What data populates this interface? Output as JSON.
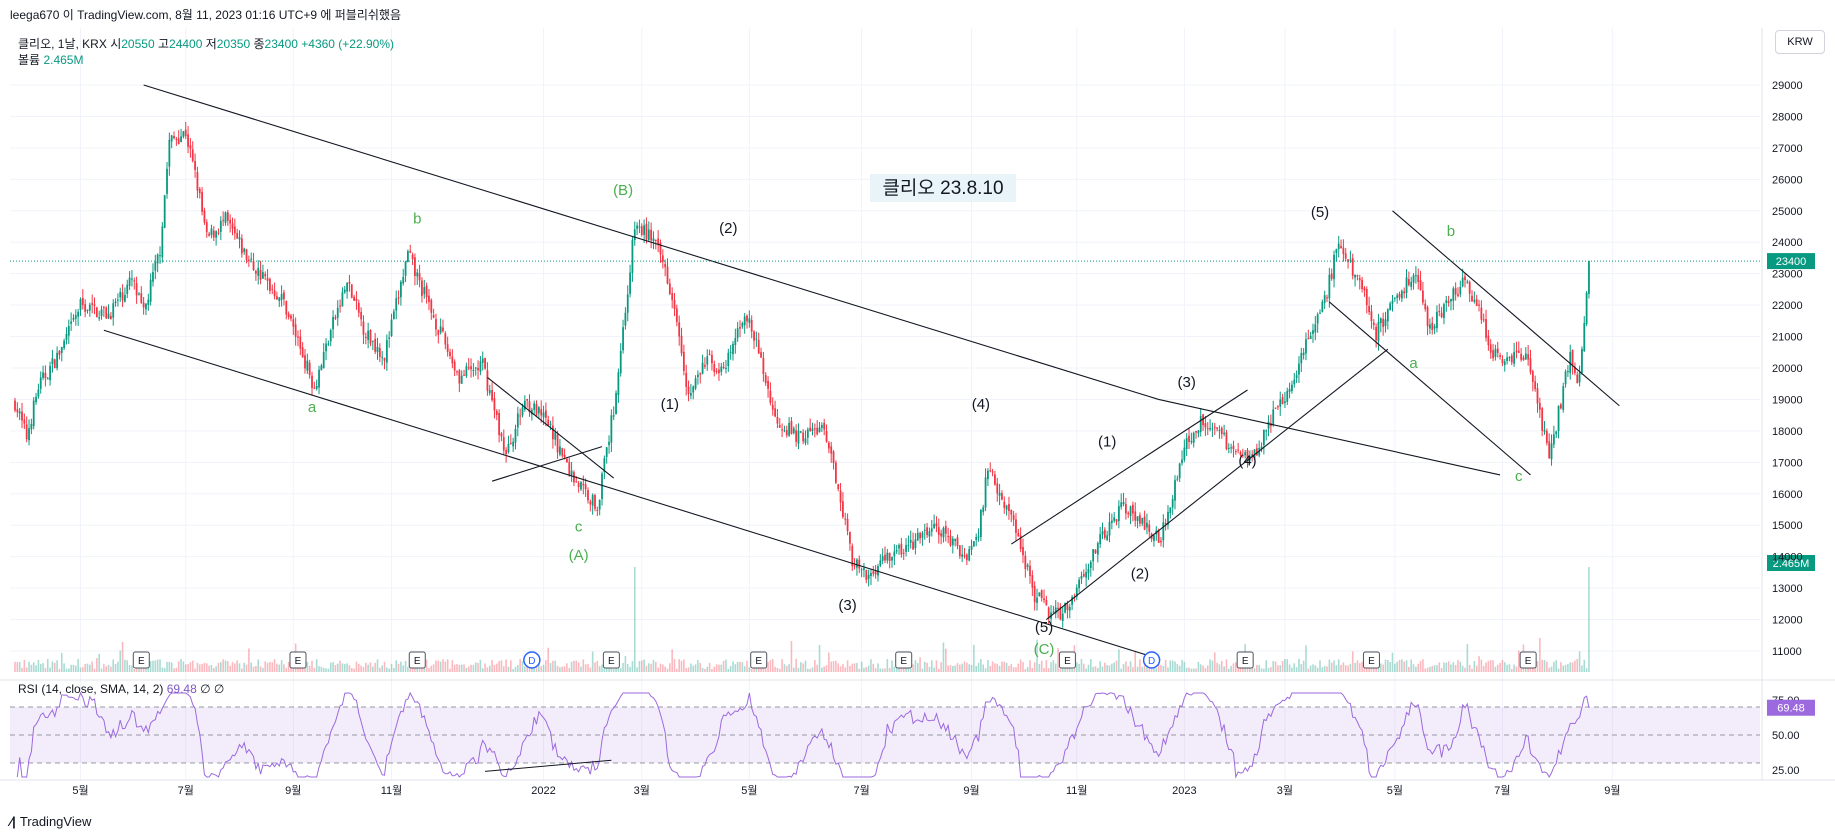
{
  "header": {
    "published_note": "leega670 이 TradingView.com, 8월 11, 2023 01:16 UTC+9 에 퍼블리쉬했음",
    "symbol_line": "클리오, 1날, KRX",
    "open_label": "시",
    "open": "20550",
    "high_label": "고",
    "high": "24400",
    "low_label": "저",
    "low": "20350",
    "close_label": "종",
    "close": "23400",
    "change": "+4360 (+22.90%)",
    "volume_label": "볼륨",
    "volume": "2.465M",
    "currency": "KRW"
  },
  "rsi_header": {
    "label": "RSI (14, close, SMA, 14, 2)",
    "value": "69.48",
    "extra": "∅ ∅"
  },
  "footer": {
    "brand": "TradingView"
  },
  "colors": {
    "up": "#089981",
    "down": "#f23645",
    "rsi": "#9c6ade",
    "wave_green": "#4caf50",
    "price_line": "#089981"
  },
  "chart_data": {
    "type": "candlestick",
    "title": "클리오 23.8.10",
    "y_ticks": [
      11000,
      12000,
      13000,
      14000,
      15000,
      16000,
      17000,
      18000,
      19000,
      20000,
      21000,
      22000,
      23000,
      24000,
      25000,
      26000,
      27000,
      28000,
      29000
    ],
    "ylim": [
      10300,
      29700
    ],
    "x_tick_labels": [
      "5월",
      "7월",
      "9월",
      "11월",
      "2022",
      "3월",
      "5월",
      "7월",
      "9월",
      "11월",
      "2023",
      "3월",
      "5월",
      "7월",
      "9월"
    ],
    "x_tick_bars": [
      28,
      73,
      119,
      161,
      226,
      268,
      314,
      362,
      409,
      454,
      500,
      543,
      590,
      636,
      683
    ],
    "total_bars": 745,
    "last_price": "23400",
    "last_volume": "2.465M",
    "price_path_knots": [
      [
        0,
        18900
      ],
      [
        5,
        17800
      ],
      [
        10,
        19400
      ],
      [
        20,
        20600
      ],
      [
        28,
        22000
      ],
      [
        40,
        21700
      ],
      [
        50,
        22800
      ],
      [
        55,
        21700
      ],
      [
        62,
        23800
      ],
      [
        66,
        27200
      ],
      [
        73,
        27500
      ],
      [
        78,
        25800
      ],
      [
        82,
        24100
      ],
      [
        90,
        24700
      ],
      [
        100,
        23400
      ],
      [
        115,
        22100
      ],
      [
        128,
        19400
      ],
      [
        135,
        21200
      ],
      [
        142,
        22700
      ],
      [
        150,
        21100
      ],
      [
        158,
        20400
      ],
      [
        168,
        23600
      ],
      [
        178,
        21800
      ],
      [
        190,
        19700
      ],
      [
        200,
        20100
      ],
      [
        210,
        17200
      ],
      [
        218,
        19000
      ],
      [
        228,
        18200
      ],
      [
        238,
        16600
      ],
      [
        249,
        15600
      ],
      [
        256,
        18700
      ],
      [
        262,
        22500
      ],
      [
        265,
        24500
      ],
      [
        272,
        24200
      ],
      [
        278,
        23200
      ],
      [
        283,
        21700
      ],
      [
        288,
        19100
      ],
      [
        296,
        20300
      ],
      [
        303,
        19800
      ],
      [
        312,
        21800
      ],
      [
        318,
        20500
      ],
      [
        325,
        18400
      ],
      [
        335,
        17800
      ],
      [
        345,
        18100
      ],
      [
        352,
        16300
      ],
      [
        358,
        13900
      ],
      [
        364,
        13300
      ],
      [
        372,
        14000
      ],
      [
        382,
        14300
      ],
      [
        392,
        14900
      ],
      [
        398,
        14700
      ],
      [
        406,
        14000
      ],
      [
        412,
        14700
      ],
      [
        416,
        16900
      ],
      [
        422,
        15900
      ],
      [
        428,
        14900
      ],
      [
        436,
        12800
      ],
      [
        444,
        12100
      ],
      [
        450,
        12400
      ],
      [
        458,
        13700
      ],
      [
        465,
        14600
      ],
      [
        474,
        15700
      ],
      [
        482,
        15000
      ],
      [
        490,
        14600
      ],
      [
        500,
        17500
      ],
      [
        508,
        18400
      ],
      [
        515,
        17900
      ],
      [
        522,
        17300
      ],
      [
        530,
        17300
      ],
      [
        536,
        18200
      ],
      [
        545,
        19300
      ],
      [
        550,
        20500
      ],
      [
        556,
        21300
      ],
      [
        561,
        22400
      ],
      [
        566,
        24000
      ],
      [
        570,
        23300
      ],
      [
        576,
        22700
      ],
      [
        582,
        21100
      ],
      [
        590,
        22200
      ],
      [
        598,
        23000
      ],
      [
        605,
        21300
      ],
      [
        612,
        22100
      ],
      [
        620,
        22700
      ],
      [
        627,
        21600
      ],
      [
        632,
        20400
      ],
      [
        640,
        20400
      ],
      [
        647,
        20300
      ],
      [
        652,
        18500
      ],
      [
        656,
        17100
      ],
      [
        660,
        18600
      ],
      [
        665,
        20400
      ],
      [
        668,
        19500
      ],
      [
        670,
        20600
      ],
      [
        673,
        23400
      ]
    ],
    "volume_spikes": [
      [
        265,
        "large"
      ],
      [
        673,
        "large"
      ]
    ],
    "trendlines": [
      {
        "from": [
          55,
          29000
        ],
        "to": [
          489,
          19000
        ]
      },
      {
        "from": [
          489,
          19000
        ],
        "to": [
          635,
          16600
        ]
      },
      {
        "from": [
          38,
          21200
        ],
        "to": [
          487,
          10800
        ]
      },
      {
        "from": [
          202,
          19700
        ],
        "to": [
          256,
          16500
        ]
      },
      {
        "from": [
          204,
          16400
        ],
        "to": [
          251,
          17500
        ]
      },
      {
        "from": [
          426,
          14400
        ],
        "to": [
          527,
          19300
        ]
      },
      {
        "from": [
          441,
          12000
        ],
        "to": [
          587,
          20600
        ]
      },
      {
        "from": [
          589,
          25000
        ],
        "to": [
          686,
          18800
        ]
      },
      {
        "from": [
          562,
          22100
        ],
        "to": [
          648,
          16600
        ]
      }
    ],
    "wave_labels": [
      {
        "text": "a",
        "bar": 127,
        "price": 18600,
        "color": "green"
      },
      {
        "text": "b",
        "bar": 172,
        "price": 24600,
        "color": "green"
      },
      {
        "text": "c",
        "bar": 241,
        "price": 14800,
        "color": "green"
      },
      {
        "text": "(A)",
        "bar": 241,
        "price": 13900,
        "color": "green"
      },
      {
        "text": "(B)",
        "bar": 260,
        "price": 25500,
        "color": "green"
      },
      {
        "text": "(1)",
        "bar": 280,
        "price": 18700,
        "color": "black"
      },
      {
        "text": "(2)",
        "bar": 305,
        "price": 24300,
        "color": "black"
      },
      {
        "text": "(3)",
        "bar": 356,
        "price": 12300,
        "color": "black"
      },
      {
        "text": "(4)",
        "bar": 413,
        "price": 18700,
        "color": "black"
      },
      {
        "text": "(5)",
        "bar": 440,
        "price": 11600,
        "color": "black"
      },
      {
        "text": "(C)",
        "bar": 440,
        "price": 10900,
        "color": "green"
      },
      {
        "text": "(1)",
        "bar": 467,
        "price": 17500,
        "color": "black"
      },
      {
        "text": "(2)",
        "bar": 481,
        "price": 13300,
        "color": "black"
      },
      {
        "text": "(3)",
        "bar": 501,
        "price": 19400,
        "color": "black"
      },
      {
        "text": "(4)",
        "bar": 527,
        "price": 16900,
        "color": "black"
      },
      {
        "text": "(5)",
        "bar": 558,
        "price": 24800,
        "color": "black"
      },
      {
        "text": "a",
        "bar": 598,
        "price": 20000,
        "color": "green"
      },
      {
        "text": "b",
        "bar": 614,
        "price": 24200,
        "color": "green"
      },
      {
        "text": "c",
        "bar": 643,
        "price": 16400,
        "color": "green"
      }
    ],
    "event_markers": [
      {
        "label": "E",
        "bar": 54
      },
      {
        "label": "E",
        "bar": 121
      },
      {
        "label": "E",
        "bar": 172
      },
      {
        "label": "D",
        "bar": 221
      },
      {
        "label": "E",
        "bar": 255
      },
      {
        "label": "E",
        "bar": 318
      },
      {
        "label": "E",
        "bar": 380
      },
      {
        "label": "E",
        "bar": 450
      },
      {
        "label": "D",
        "bar": 486
      },
      {
        "label": "E",
        "bar": 526
      },
      {
        "label": "E",
        "bar": 580
      },
      {
        "label": "E",
        "bar": 647
      }
    ],
    "rsi": {
      "y_ticks": [
        25,
        50,
        75
      ],
      "bands": [
        30,
        70
      ],
      "ylim": [
        20,
        80
      ],
      "current": "69.48",
      "trendline": {
        "from": [
          201,
          24
        ],
        "to": [
          255,
          32
        ]
      }
    }
  }
}
